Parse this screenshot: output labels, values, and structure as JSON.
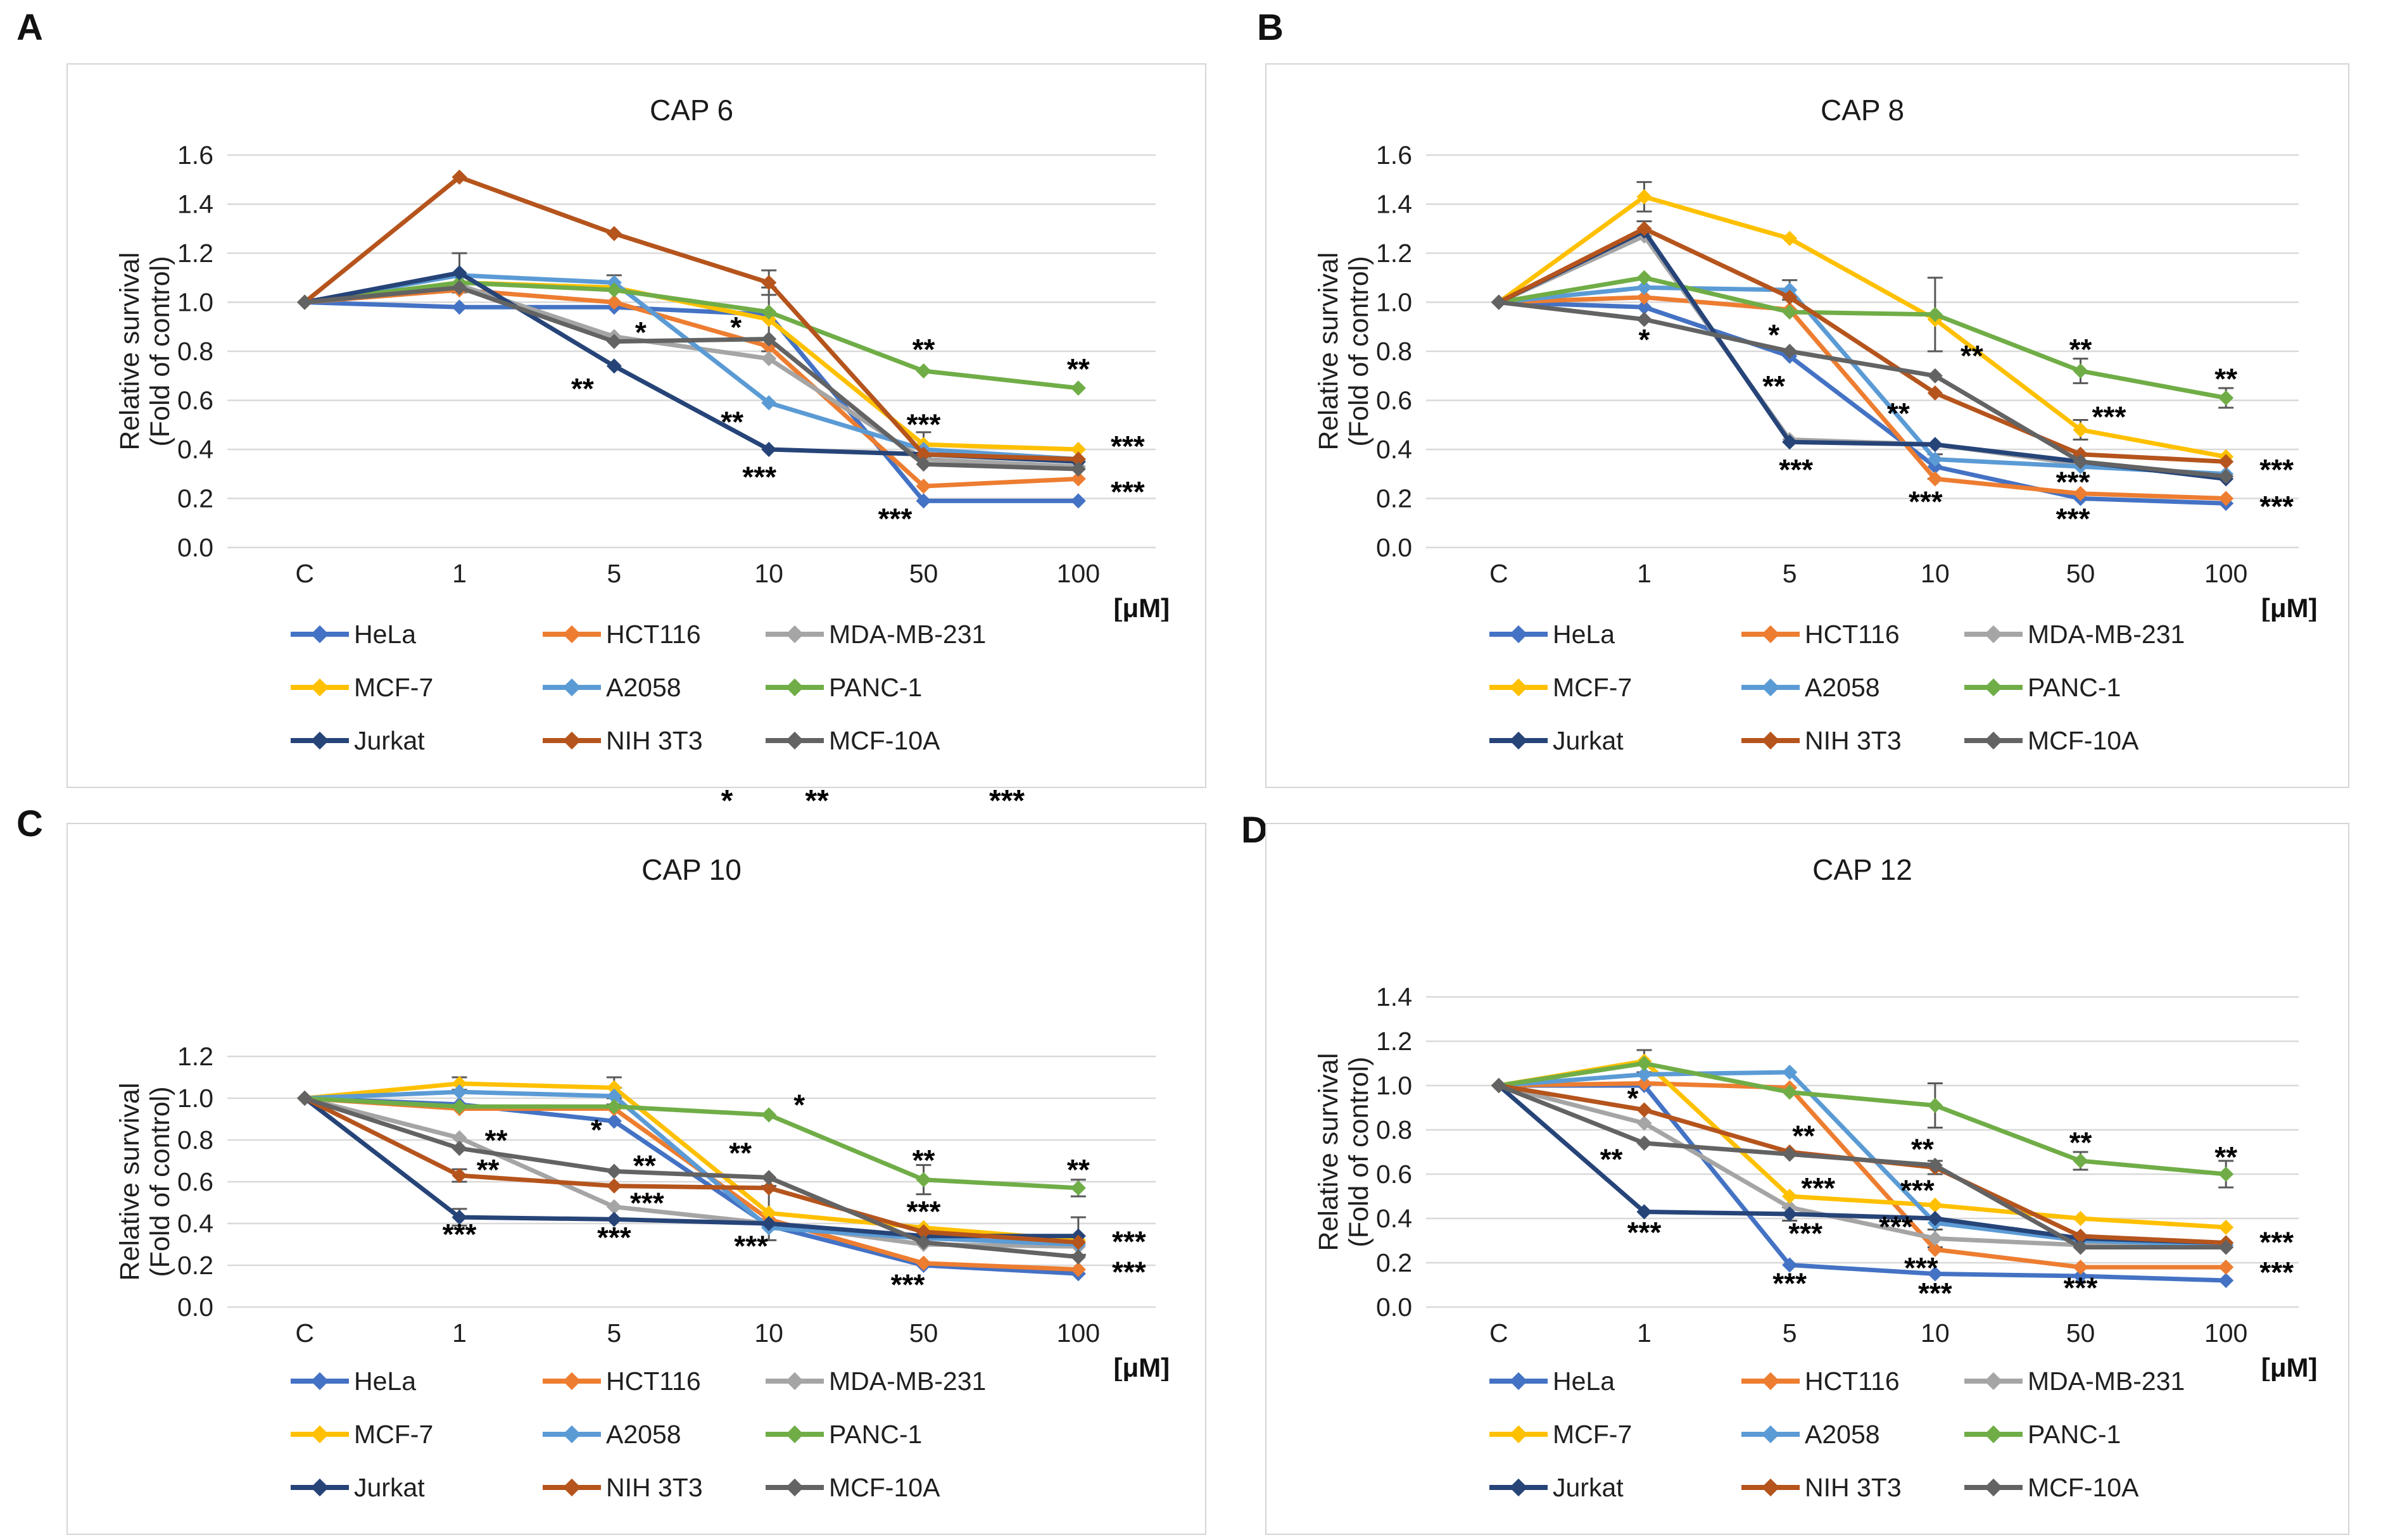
{
  "figure": {
    "background": "#FFFFFF",
    "panel_border_color": "#D5D5D5",
    "grid_color": "#D9D9D9",
    "error_bar_color": "#595959",
    "annotation_color": "#000000",
    "text_color": "#1f1f1f"
  },
  "stray_significance": {
    "items": [
      {
        "text": "*",
        "x": 1148
      },
      {
        "text": "**",
        "x": 1290
      },
      {
        "text": "***",
        "x": 1590
      }
    ]
  },
  "chart_data": [
    {
      "type": "line",
      "panel_label": "A",
      "title": "CAP 6",
      "ylabel": [
        "Relative survival",
        "(Fold of control)"
      ],
      "xlabel_unit": "[μM]",
      "categories": [
        "C",
        "1",
        "5",
        "10",
        "50",
        "100"
      ],
      "ylim": [
        0,
        1.6
      ],
      "ytick_step": 0.2,
      "grid": true,
      "legend_position": "bottom",
      "series": [
        {
          "name": "HeLa",
          "color": "#4472C4",
          "values": [
            1.0,
            0.98,
            0.98,
            0.95,
            0.19,
            0.19
          ]
        },
        {
          "name": "HCT116",
          "color": "#ED7D31",
          "values": [
            1.0,
            1.05,
            1.0,
            0.82,
            0.25,
            0.28
          ]
        },
        {
          "name": "MDA-MB-231",
          "color": "#A5A5A5",
          "values": [
            1.0,
            1.07,
            0.86,
            0.77,
            0.36,
            0.33
          ]
        },
        {
          "name": "MCF-7",
          "color": "#FFC000",
          "values": [
            1.0,
            1.08,
            1.06,
            0.93,
            0.42,
            0.4
          ]
        },
        {
          "name": "A2058",
          "color": "#5B9BD5",
          "values": [
            1.0,
            1.11,
            1.08,
            0.59,
            0.4,
            0.36
          ]
        },
        {
          "name": "PANC-1",
          "color": "#70AD47",
          "values": [
            1.0,
            1.08,
            1.05,
            0.96,
            0.72,
            0.65
          ]
        },
        {
          "name": "Jurkat",
          "color": "#264478",
          "values": [
            1.0,
            1.12,
            0.74,
            0.4,
            0.38,
            0.35
          ]
        },
        {
          "name": "NIH 3T3",
          "color": "#B5541C",
          "values": [
            1.0,
            1.51,
            1.28,
            1.08,
            0.38,
            0.36
          ]
        },
        {
          "name": "MCF-10A",
          "color": "#636363",
          "values": [
            1.0,
            1.06,
            0.84,
            0.85,
            0.34,
            0.32
          ]
        }
      ],
      "error_bars": [
        [
          6,
          1,
          0.08
        ],
        [
          4,
          2,
          0.03
        ],
        [
          3,
          3,
          0.13
        ],
        [
          7,
          3,
          0.05
        ],
        [
          3,
          4,
          0.05
        ]
      ],
      "significance": [
        {
          "x": 2,
          "y": 0.875,
          "text": "*",
          "dx": 42
        },
        {
          "x": 2,
          "y": 0.645,
          "text": "**",
          "dx": -50
        },
        {
          "x": 3,
          "y": 0.895,
          "text": "*",
          "dx": -52
        },
        {
          "x": 3,
          "y": 0.51,
          "text": "**",
          "dx": -58
        },
        {
          "x": 3,
          "y": 0.285,
          "text": "***",
          "dx": -15
        },
        {
          "x": 4,
          "y": 0.805,
          "text": "**",
          "dx": 0
        },
        {
          "x": 4,
          "y": 0.5,
          "text": "***",
          "dx": 0
        },
        {
          "x": 4,
          "y": 0.115,
          "text": "***",
          "dx": -45
        },
        {
          "x": 5,
          "y": 0.725,
          "text": "**",
          "dx": 0
        },
        {
          "x": 5,
          "y": 0.41,
          "text": "***",
          "dx": 78
        },
        {
          "x": 5,
          "y": 0.225,
          "text": "***",
          "dx": 78
        }
      ]
    },
    {
      "type": "line",
      "panel_label": "B",
      "title": "CAP 8",
      "ylabel": [
        "Relative survival",
        "(Fold of control)"
      ],
      "xlabel_unit": "[μM]",
      "categories": [
        "C",
        "1",
        "5",
        "10",
        "50",
        "100"
      ],
      "ylim": [
        0,
        1.6
      ],
      "ytick_step": 0.2,
      "grid": true,
      "legend_position": "bottom",
      "series": [
        {
          "name": "HeLa",
          "color": "#4472C4",
          "values": [
            1.0,
            0.98,
            0.78,
            0.33,
            0.2,
            0.18
          ]
        },
        {
          "name": "HCT116",
          "color": "#ED7D31",
          "values": [
            1.0,
            1.02,
            0.97,
            0.28,
            0.22,
            0.2
          ]
        },
        {
          "name": "MDA-MB-231",
          "color": "#A5A5A5",
          "values": [
            1.0,
            1.27,
            0.44,
            0.42,
            0.34,
            0.29
          ]
        },
        {
          "name": "MCF-7",
          "color": "#FFC000",
          "values": [
            1.0,
            1.43,
            1.26,
            0.93,
            0.48,
            0.37
          ]
        },
        {
          "name": "A2058",
          "color": "#5B9BD5",
          "values": [
            1.0,
            1.06,
            1.05,
            0.36,
            0.33,
            0.3
          ]
        },
        {
          "name": "PANC-1",
          "color": "#70AD47",
          "values": [
            1.0,
            1.1,
            0.96,
            0.95,
            0.72,
            0.61
          ]
        },
        {
          "name": "Jurkat",
          "color": "#264478",
          "values": [
            1.0,
            1.29,
            0.43,
            0.42,
            0.35,
            0.28
          ]
        },
        {
          "name": "NIH 3T3",
          "color": "#B5541C",
          "values": [
            1.0,
            1.3,
            1.02,
            0.63,
            0.38,
            0.35
          ]
        },
        {
          "name": "MCF-10A",
          "color": "#636363",
          "values": [
            1.0,
            0.93,
            0.8,
            0.7,
            0.35,
            0.29
          ]
        }
      ],
      "error_bars": [
        [
          3,
          1,
          0.06
        ],
        [
          7,
          1,
          0.03
        ],
        [
          4,
          2,
          0.04
        ],
        [
          5,
          3,
          0.15
        ],
        [
          0,
          3,
          0.05
        ],
        [
          3,
          4,
          0.04
        ],
        [
          5,
          4,
          0.05
        ],
        [
          5,
          5,
          0.04
        ]
      ],
      "significance": [
        {
          "x": 1,
          "y": 0.845,
          "text": "*",
          "dx": 0
        },
        {
          "x": 2,
          "y": 0.865,
          "text": "*",
          "dx": -25
        },
        {
          "x": 2,
          "y": 0.655,
          "text": "**",
          "dx": -25
        },
        {
          "x": 2,
          "y": 0.315,
          "text": "***",
          "dx": 10
        },
        {
          "x": 3,
          "y": 0.78,
          "text": "**",
          "dx": 58
        },
        {
          "x": 3,
          "y": 0.545,
          "text": "**",
          "dx": -58
        },
        {
          "x": 3,
          "y": 0.185,
          "text": "***",
          "dx": -15
        },
        {
          "x": 4,
          "y": 0.805,
          "text": "**",
          "dx": 0
        },
        {
          "x": 4,
          "y": 0.53,
          "text": "***",
          "dx": 45
        },
        {
          "x": 4,
          "y": 0.265,
          "text": "***",
          "dx": -12
        },
        {
          "x": 4,
          "y": 0.115,
          "text": "***",
          "dx": -12
        },
        {
          "x": 5,
          "y": 0.685,
          "text": "**",
          "dx": 0
        },
        {
          "x": 5,
          "y": 0.315,
          "text": "***",
          "dx": 80
        },
        {
          "x": 5,
          "y": 0.165,
          "text": "***",
          "dx": 80
        }
      ]
    },
    {
      "type": "line",
      "panel_label": "C",
      "title": "CAP 10",
      "ylabel": [
        "Relative survival",
        "(Fold of control)"
      ],
      "xlabel_unit": "[μM]",
      "categories": [
        "C",
        "1",
        "5",
        "10",
        "50",
        "100"
      ],
      "ylim": [
        0,
        1.2
      ],
      "ytick_step": 0.2,
      "grid": true,
      "legend_position": "bottom",
      "series": [
        {
          "name": "HeLa",
          "color": "#4472C4",
          "values": [
            1.0,
            0.97,
            0.89,
            0.39,
            0.2,
            0.16
          ]
        },
        {
          "name": "HCT116",
          "color": "#ED7D31",
          "values": [
            1.0,
            0.95,
            0.95,
            0.42,
            0.21,
            0.18
          ]
        },
        {
          "name": "MDA-MB-231",
          "color": "#A5A5A5",
          "values": [
            1.0,
            0.81,
            0.48,
            0.4,
            0.3,
            0.29
          ]
        },
        {
          "name": "MCF-7",
          "color": "#FFC000",
          "values": [
            1.0,
            1.07,
            1.05,
            0.45,
            0.38,
            0.32
          ]
        },
        {
          "name": "A2058",
          "color": "#5B9BD5",
          "values": [
            1.0,
            1.03,
            1.01,
            0.38,
            0.33,
            0.3
          ]
        },
        {
          "name": "PANC-1",
          "color": "#70AD47",
          "values": [
            1.0,
            0.96,
            0.96,
            0.92,
            0.61,
            0.57
          ]
        },
        {
          "name": "Jurkat",
          "color": "#264478",
          "values": [
            1.0,
            0.43,
            0.42,
            0.4,
            0.34,
            0.34
          ]
        },
        {
          "name": "NIH 3T3",
          "color": "#B5541C",
          "values": [
            1.0,
            0.63,
            0.58,
            0.57,
            0.36,
            0.31
          ]
        },
        {
          "name": "MCF-10A",
          "color": "#636363",
          "values": [
            1.0,
            0.76,
            0.65,
            0.62,
            0.31,
            0.24
          ]
        }
      ],
      "error_bars": [
        [
          3,
          1,
          0.03
        ],
        [
          6,
          1,
          0.04
        ],
        [
          7,
          1,
          0.03
        ],
        [
          3,
          2,
          0.05
        ],
        [
          4,
          2,
          0.04
        ],
        [
          3,
          3,
          0.13
        ],
        [
          5,
          4,
          0.07
        ],
        [
          6,
          5,
          0.09
        ],
        [
          5,
          5,
          0.04
        ]
      ],
      "significance": [
        {
          "x": 1,
          "y": 0.795,
          "text": "**",
          "dx": 58
        },
        {
          "x": 1,
          "y": 0.655,
          "text": "**",
          "dx": 45
        },
        {
          "x": 1,
          "y": 0.345,
          "text": "***",
          "dx": 0
        },
        {
          "x": 2,
          "y": 0.845,
          "text": "*",
          "dx": -28
        },
        {
          "x": 2,
          "y": 0.675,
          "text": "**",
          "dx": 48
        },
        {
          "x": 2,
          "y": 0.495,
          "text": "***",
          "dx": 52
        },
        {
          "x": 2,
          "y": 0.33,
          "text": "***",
          "dx": 0
        },
        {
          "x": 3,
          "y": 0.965,
          "text": "*",
          "dx": 48
        },
        {
          "x": 3,
          "y": 0.735,
          "text": "**",
          "dx": -45
        },
        {
          "x": 3,
          "y": 0.29,
          "text": "***",
          "dx": -28
        },
        {
          "x": 4,
          "y": 0.7,
          "text": "**",
          "dx": 0
        },
        {
          "x": 4,
          "y": 0.455,
          "text": "***",
          "dx": 0
        },
        {
          "x": 4,
          "y": 0.105,
          "text": "***",
          "dx": -25
        },
        {
          "x": 5,
          "y": 0.655,
          "text": "**",
          "dx": 0
        },
        {
          "x": 5,
          "y": 0.31,
          "text": "***",
          "dx": 80
        },
        {
          "x": 5,
          "y": 0.165,
          "text": "***",
          "dx": 80
        }
      ]
    },
    {
      "type": "line",
      "panel_label": "D",
      "title": "CAP 12",
      "ylabel": [
        "Relative survival",
        "(Fold of control)"
      ],
      "xlabel_unit": "[μM]",
      "categories": [
        "C",
        "1",
        "5",
        "10",
        "50",
        "100"
      ],
      "ylim": [
        0,
        1.4
      ],
      "ytick_step": 0.2,
      "grid": true,
      "legend_position": "bottom",
      "series": [
        {
          "name": "HeLa",
          "color": "#4472C4",
          "values": [
            1.0,
            1.0,
            0.19,
            0.15,
            0.14,
            0.12
          ]
        },
        {
          "name": "HCT116",
          "color": "#ED7D31",
          "values": [
            1.0,
            1.01,
            0.99,
            0.26,
            0.18,
            0.18
          ]
        },
        {
          "name": "MDA-MB-231",
          "color": "#A5A5A5",
          "values": [
            1.0,
            0.83,
            0.45,
            0.31,
            0.28,
            0.27
          ]
        },
        {
          "name": "MCF-7",
          "color": "#FFC000",
          "values": [
            1.0,
            1.11,
            0.5,
            0.46,
            0.4,
            0.36
          ]
        },
        {
          "name": "A2058",
          "color": "#5B9BD5",
          "values": [
            1.0,
            1.05,
            1.06,
            0.38,
            0.3,
            0.28
          ]
        },
        {
          "name": "PANC-1",
          "color": "#70AD47",
          "values": [
            1.0,
            1.1,
            0.97,
            0.91,
            0.66,
            0.6
          ]
        },
        {
          "name": "Jurkat",
          "color": "#264478",
          "values": [
            1.0,
            0.43,
            0.42,
            0.4,
            0.31,
            0.29
          ]
        },
        {
          "name": "NIH 3T3",
          "color": "#B5541C",
          "values": [
            1.0,
            0.89,
            0.7,
            0.63,
            0.32,
            0.29
          ]
        },
        {
          "name": "MCF-10A",
          "color": "#636363",
          "values": [
            1.0,
            0.74,
            0.69,
            0.64,
            0.27,
            0.27
          ]
        }
      ],
      "error_bars": [
        [
          3,
          1,
          0.05
        ],
        [
          6,
          2,
          0.03
        ],
        [
          5,
          3,
          0.1
        ],
        [
          2,
          3,
          0.04
        ],
        [
          7,
          3,
          0.03
        ],
        [
          5,
          4,
          0.04
        ],
        [
          5,
          5,
          0.06
        ]
      ],
      "significance": [
        {
          "x": 1,
          "y": 0.94,
          "text": "*",
          "dx": -18
        },
        {
          "x": 1,
          "y": 0.665,
          "text": "**",
          "dx": -52
        },
        {
          "x": 1,
          "y": 0.335,
          "text": "***",
          "dx": 0
        },
        {
          "x": 2,
          "y": 0.77,
          "text": "**",
          "dx": 22
        },
        {
          "x": 2,
          "y": 0.535,
          "text": "***",
          "dx": 45
        },
        {
          "x": 2,
          "y": 0.33,
          "text": "***",
          "dx": 25
        },
        {
          "x": 2,
          "y": 0.105,
          "text": "***",
          "dx": 0
        },
        {
          "x": 3,
          "y": 0.71,
          "text": "**",
          "dx": -20
        },
        {
          "x": 3,
          "y": 0.525,
          "text": "***",
          "dx": -28
        },
        {
          "x": 3,
          "y": 0.36,
          "text": "***",
          "dx": -62
        },
        {
          "x": 3,
          "y": 0.175,
          "text": "***",
          "dx": -22
        },
        {
          "x": 3,
          "y": 0.06,
          "text": "***",
          "dx": 0
        },
        {
          "x": 4,
          "y": 0.74,
          "text": "**",
          "dx": 0
        },
        {
          "x": 4,
          "y": 0.085,
          "text": "***",
          "dx": 0
        },
        {
          "x": 5,
          "y": 0.675,
          "text": "**",
          "dx": 0
        },
        {
          "x": 5,
          "y": 0.29,
          "text": "***",
          "dx": 80
        },
        {
          "x": 5,
          "y": 0.155,
          "text": "***",
          "dx": 80
        }
      ]
    }
  ]
}
